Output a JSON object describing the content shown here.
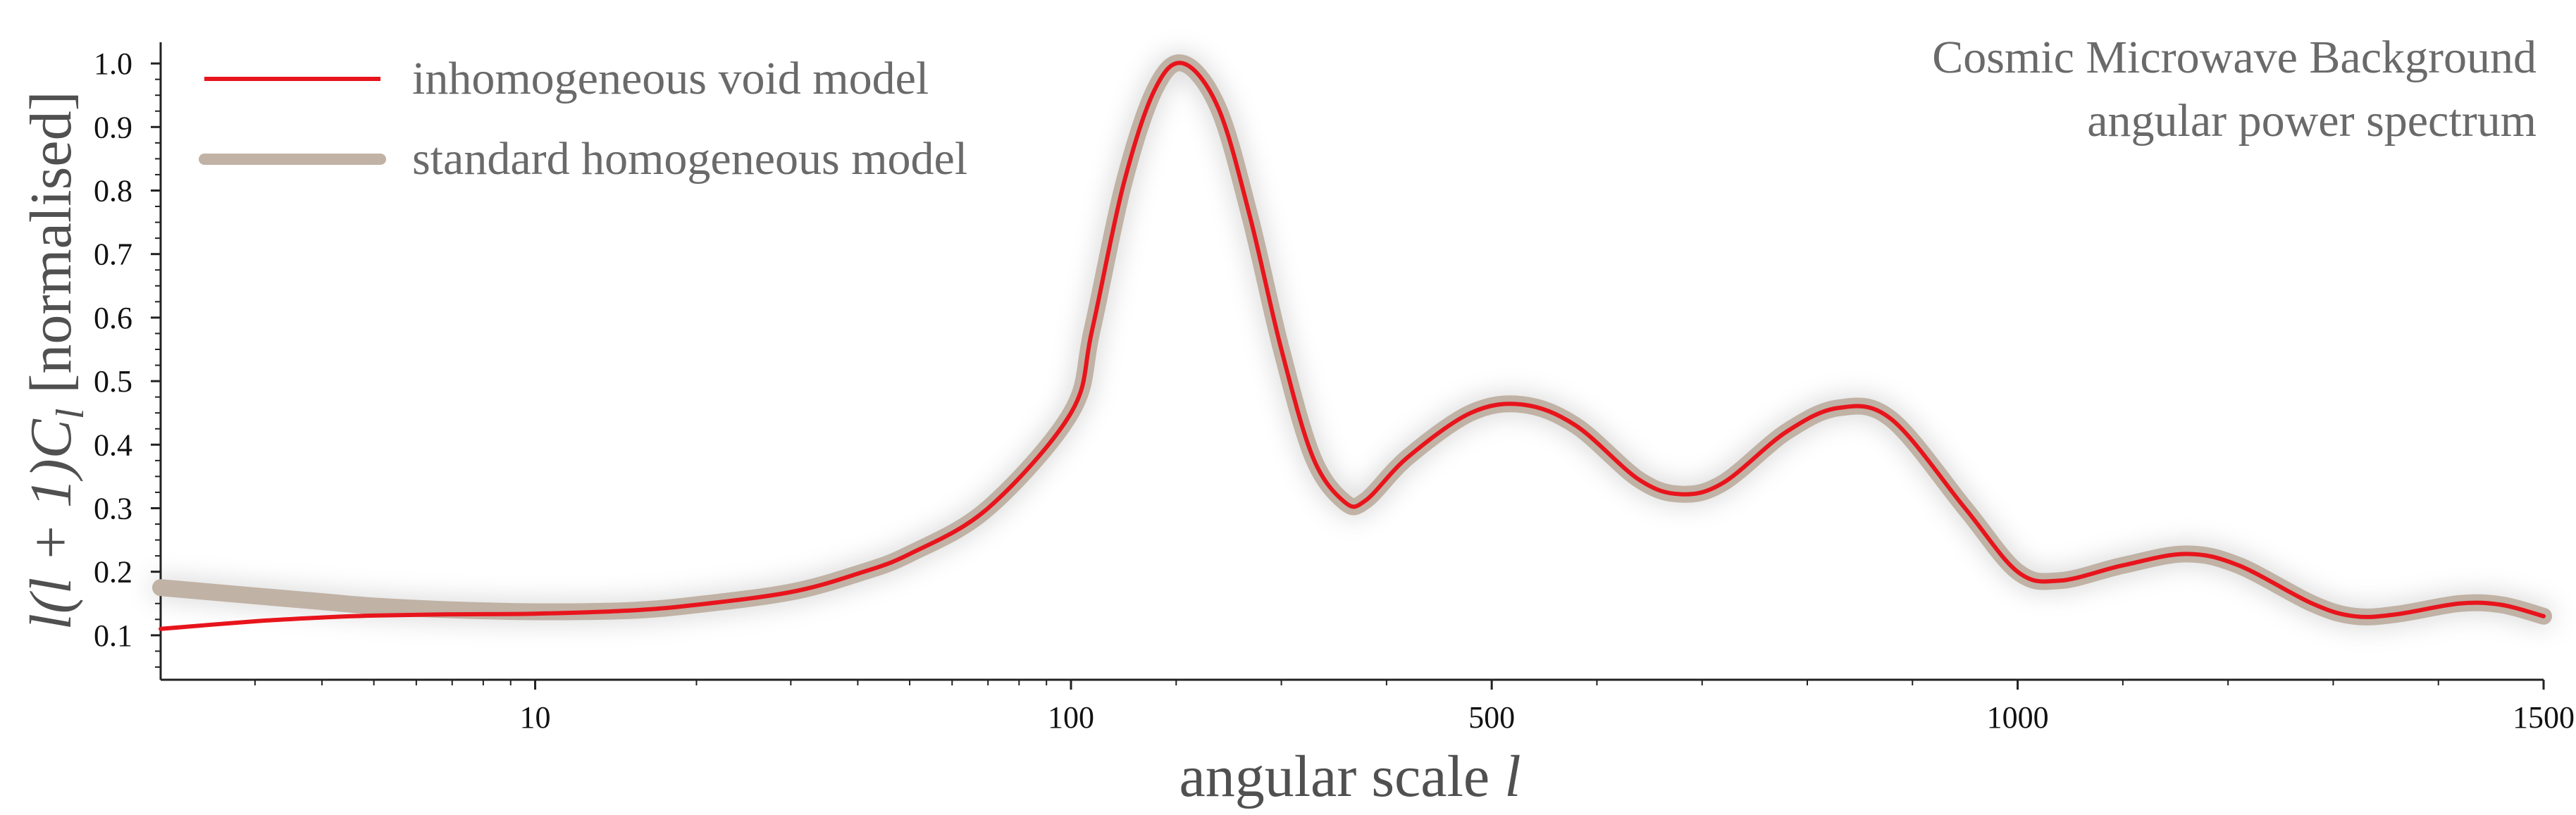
{
  "chart_data": {
    "type": "line",
    "title": "Cosmic Microwave Background",
    "subtitle": "angular power spectrum",
    "xlabel": "angular scale l",
    "xlabel_main": "angular scale ",
    "xlabel_symbol": "l",
    "ylabel": "l(l + 1)C_l [normalised]",
    "ylabel_math": "l(l + 1)C",
    "ylabel_subscript": "l",
    "ylabel_unit": " [normalised]",
    "x_scale": "log below l = 100, linear from 100 to 1500",
    "xlim": [
      2,
      1500
    ],
    "ylim": [
      0.03,
      1.05
    ],
    "x_ticks": [
      10,
      100,
      500,
      1000,
      1500
    ],
    "x_tick_labels": [
      "10",
      "100",
      "500",
      "1000",
      "1500"
    ],
    "y_ticks": [
      0.1,
      0.2,
      0.3,
      0.4,
      0.5,
      0.6,
      0.7,
      0.8,
      0.9,
      1.0
    ],
    "y_tick_labels": [
      "0.1",
      "0.2",
      "0.3",
      "0.4",
      "0.5",
      "0.6",
      "0.7",
      "0.8",
      "0.9",
      "1.0"
    ],
    "grid": false,
    "legend_position": "top-left",
    "series": [
      {
        "name": "standard homogeneous model",
        "color": "#c0b2a5",
        "points": [
          [
            2,
            0.175
          ],
          [
            3,
            0.162
          ],
          [
            4,
            0.153
          ],
          [
            5,
            0.146
          ],
          [
            7,
            0.14
          ],
          [
            10,
            0.137
          ],
          [
            15,
            0.139
          ],
          [
            20,
            0.148
          ],
          [
            30,
            0.168
          ],
          [
            40,
            0.197
          ],
          [
            50,
            0.228
          ],
          [
            70,
            0.3
          ],
          [
            100,
            0.45
          ],
          [
            120,
            0.58
          ],
          [
            150,
            0.81
          ],
          [
            180,
            0.96
          ],
          [
            207,
            1.0
          ],
          [
            240,
            0.93
          ],
          [
            270,
            0.76
          ],
          [
            300,
            0.55
          ],
          [
            330,
            0.38
          ],
          [
            360,
            0.31
          ],
          [
            380,
            0.312
          ],
          [
            420,
            0.38
          ],
          [
            480,
            0.45
          ],
          [
            530,
            0.463
          ],
          [
            580,
            0.43
          ],
          [
            640,
            0.345
          ],
          [
            680,
            0.322
          ],
          [
            720,
            0.34
          ],
          [
            780,
            0.42
          ],
          [
            830,
            0.458
          ],
          [
            880,
            0.44
          ],
          [
            950,
            0.3
          ],
          [
            1000,
            0.2
          ],
          [
            1040,
            0.186
          ],
          [
            1100,
            0.21
          ],
          [
            1160,
            0.228
          ],
          [
            1210,
            0.21
          ],
          [
            1280,
            0.15
          ],
          [
            1320,
            0.13
          ],
          [
            1360,
            0.133
          ],
          [
            1420,
            0.15
          ],
          [
            1460,
            0.148
          ],
          [
            1500,
            0.13
          ]
        ]
      },
      {
        "name": "inhomogeneous void model",
        "color": "#e8141c",
        "points": [
          [
            2,
            0.11
          ],
          [
            3,
            0.122
          ],
          [
            4,
            0.128
          ],
          [
            5,
            0.131
          ],
          [
            7,
            0.133
          ],
          [
            10,
            0.134
          ],
          [
            15,
            0.139
          ],
          [
            20,
            0.148
          ],
          [
            30,
            0.168
          ],
          [
            40,
            0.197
          ],
          [
            50,
            0.228
          ],
          [
            70,
            0.3
          ],
          [
            100,
            0.45
          ],
          [
            120,
            0.58
          ],
          [
            150,
            0.81
          ],
          [
            180,
            0.96
          ],
          [
            207,
            1.0
          ],
          [
            240,
            0.93
          ],
          [
            270,
            0.76
          ],
          [
            300,
            0.55
          ],
          [
            330,
            0.38
          ],
          [
            360,
            0.31
          ],
          [
            380,
            0.312
          ],
          [
            420,
            0.38
          ],
          [
            480,
            0.45
          ],
          [
            530,
            0.463
          ],
          [
            580,
            0.43
          ],
          [
            640,
            0.345
          ],
          [
            680,
            0.322
          ],
          [
            720,
            0.34
          ],
          [
            780,
            0.42
          ],
          [
            830,
            0.458
          ],
          [
            880,
            0.44
          ],
          [
            950,
            0.3
          ],
          [
            1000,
            0.2
          ],
          [
            1040,
            0.186
          ],
          [
            1100,
            0.21
          ],
          [
            1160,
            0.228
          ],
          [
            1210,
            0.21
          ],
          [
            1280,
            0.15
          ],
          [
            1320,
            0.13
          ],
          [
            1360,
            0.133
          ],
          [
            1420,
            0.15
          ],
          [
            1460,
            0.148
          ],
          [
            1500,
            0.13
          ]
        ]
      }
    ]
  }
}
